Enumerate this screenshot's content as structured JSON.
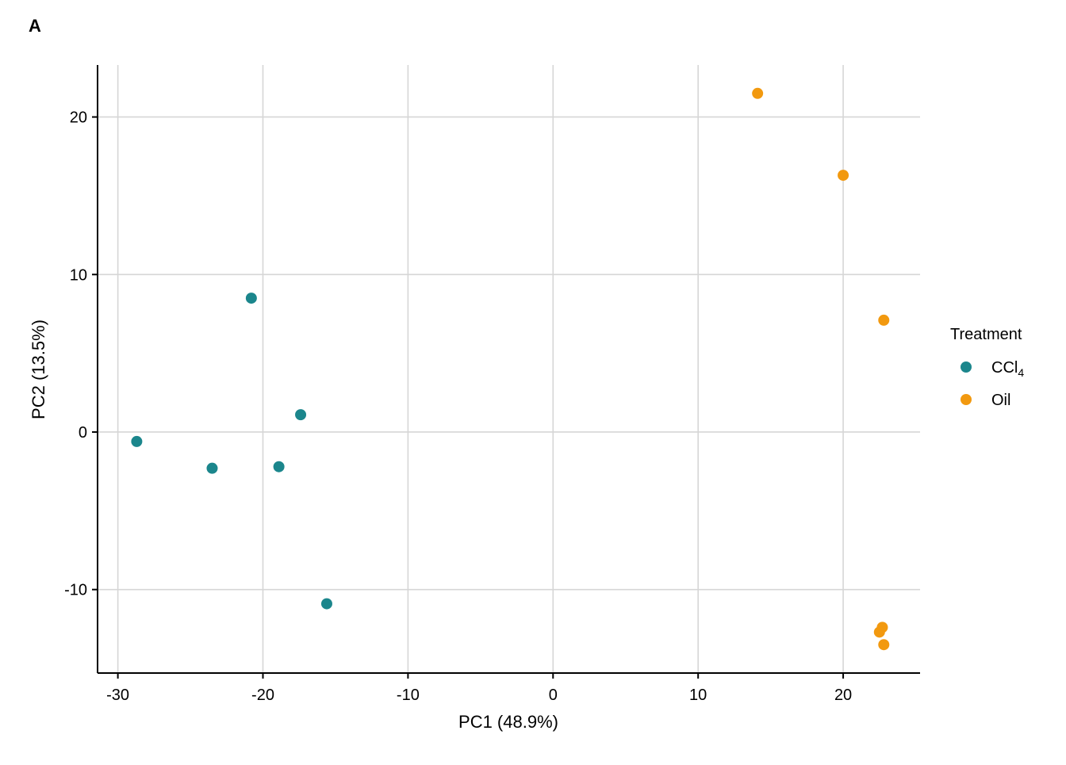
{
  "panel_label": "A",
  "chart_data": {
    "type": "scatter",
    "xlabel": "PC1 (48.9%)",
    "ylabel": "PC2 (13.5%)",
    "xlim": [
      -31.4,
      25.3
    ],
    "ylim": [
      -15.3,
      23.3
    ],
    "xticks": [
      -30,
      -20,
      -10,
      0,
      10,
      20
    ],
    "yticks": [
      -10,
      0,
      10,
      20
    ],
    "xtick_labels": [
      "-30",
      "-20",
      "-10",
      "0",
      "10",
      "20"
    ],
    "ytick_labels": [
      "-10",
      "0",
      "10",
      "20"
    ],
    "grid": true,
    "legend": {
      "title": "Treatment",
      "placement": "right"
    },
    "series": [
      {
        "name": "CCl",
        "name_sub": "4",
        "color": "#1b868c",
        "points": [
          [
            -28.7,
            -0.6
          ],
          [
            -20.8,
            8.5
          ],
          [
            -23.5,
            -2.3
          ],
          [
            -18.9,
            -2.2
          ],
          [
            -17.4,
            1.1
          ],
          [
            -15.6,
            -10.9
          ]
        ]
      },
      {
        "name": "Oil",
        "color": "#f2990f",
        "points": [
          [
            14.1,
            21.5
          ],
          [
            20.0,
            16.3
          ],
          [
            22.8,
            7.1
          ],
          [
            22.7,
            -12.4
          ],
          [
            22.5,
            -12.7
          ],
          [
            22.8,
            -13.5
          ]
        ]
      }
    ]
  }
}
